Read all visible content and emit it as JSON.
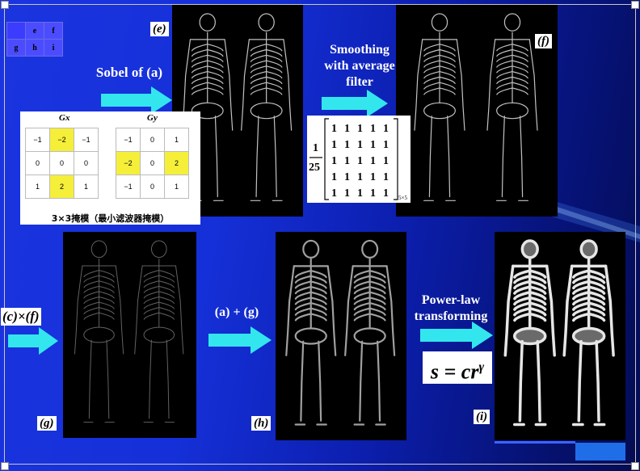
{
  "grid": {
    "rows": [
      [
        "",
        "e",
        "f"
      ],
      [
        "g",
        "h",
        "i"
      ]
    ]
  },
  "panels": {
    "e": {
      "label": "(e)"
    },
    "f": {
      "label": "(f)"
    },
    "g": {
      "label": "(g)"
    },
    "h": {
      "label": "(h)"
    },
    "i": {
      "label": "(i)"
    }
  },
  "captions": {
    "sobel": "Sobel of (a)",
    "smoothing": [
      "Smoothing",
      "with average",
      "filter"
    ],
    "ctimesf": "(c)×(f)",
    "aplusg": "(a) + (g)",
    "powerlaw": [
      "Power-law",
      "transforming"
    ]
  },
  "sobel_masks": {
    "gx_label": "Gx",
    "gy_label": "Gy",
    "gx": [
      [
        "−1",
        "−2",
        "−1"
      ],
      [
        "0",
        "0",
        "0"
      ],
      [
        "1",
        "2",
        "1"
      ]
    ],
    "gy": [
      [
        "−1",
        "0",
        "1"
      ],
      [
        "−2",
        "0",
        "2"
      ],
      [
        "−1",
        "0",
        "1"
      ]
    ],
    "gx_highlight": [
      [
        0,
        1
      ],
      [
        2,
        1
      ]
    ],
    "gy_highlight": [
      [
        1,
        0
      ],
      [
        1,
        2
      ]
    ],
    "caption": "3×3掩模（最小滤波器掩模）"
  },
  "average_filter": {
    "fraction_num": "1",
    "fraction_den": "25",
    "rows": [
      [
        "1",
        "1",
        "1",
        "1",
        "1"
      ],
      [
        "1",
        "1",
        "1",
        "1",
        "1"
      ],
      [
        "1",
        "1",
        "1",
        "1",
        "1"
      ],
      [
        "1",
        "1",
        "1",
        "1",
        "1"
      ],
      [
        "1",
        "1",
        "1",
        "1",
        "1"
      ]
    ],
    "size": "5×5"
  },
  "formula": {
    "base": "s = cr",
    "exp": "γ"
  },
  "colors": {
    "background": "#1530d8",
    "arrow": "#33e6ee",
    "highlight": "#f5ef3a"
  }
}
